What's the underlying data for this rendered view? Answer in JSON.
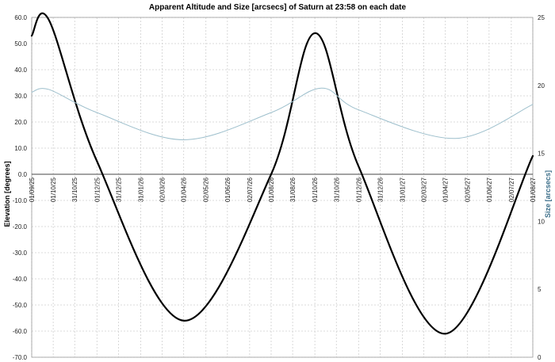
{
  "chart_data": {
    "type": "line",
    "title": "Apparent Altitude and Size [arcsecs] of Saturn at 23:58 on each date",
    "ylabel": "Elevation [degrees]",
    "y2label": "Size [arcsecs]",
    "ylim": [
      -70,
      60
    ],
    "y2lim": [
      0,
      25
    ],
    "grid": true,
    "y_ticks": [
      "60.0",
      "50.0",
      "40.0",
      "30.0",
      "20.0",
      "10.0",
      "0.0",
      "-10.0",
      "-20.0",
      "-30.0",
      "-40.0",
      "-50.0",
      "-60.0",
      "-70.0"
    ],
    "y2_ticks": [
      "25",
      "20",
      "15",
      "10",
      "5",
      "0"
    ],
    "x_tick_labels": [
      "01/09/25",
      "01/10/25",
      "31/10/25",
      "01/12/25",
      "31/12/25",
      "31/01/26",
      "02/03/26",
      "01/04/26",
      "02/05/26",
      "01/06/26",
      "02/07/26",
      "01/08/26",
      "31/08/26",
      "01/10/26",
      "31/10/26",
      "01/12/26",
      "31/12/26",
      "31/01/27",
      "02/03/27",
      "01/04/27",
      "02/05/27",
      "01/06/27",
      "02/07/27",
      "01/08/27"
    ],
    "series": [
      {
        "axis": "left",
        "color": "#000000",
        "x": [
          "01/09/25",
          "25/09/25",
          "01/12/25",
          "01/04/26",
          "01/08/26",
          "01/10/26",
          "01/12/26",
          "01/04/27",
          "01/08/27"
        ],
        "values": [
          53,
          59,
          5,
          -56,
          0,
          54,
          3,
          -61,
          7
        ]
      },
      {
        "axis": "right",
        "color": "#9dbfcc",
        "x": [
          "01/09/25",
          "25/09/25",
          "01/12/25",
          "01/04/26",
          "01/08/26",
          "10/10/26",
          "01/12/26",
          "15/04/27",
          "01/08/27"
        ],
        "values": [
          19.5,
          19.7,
          18,
          16,
          18,
          19.8,
          18.2,
          16.1,
          18.6
        ]
      }
    ]
  }
}
